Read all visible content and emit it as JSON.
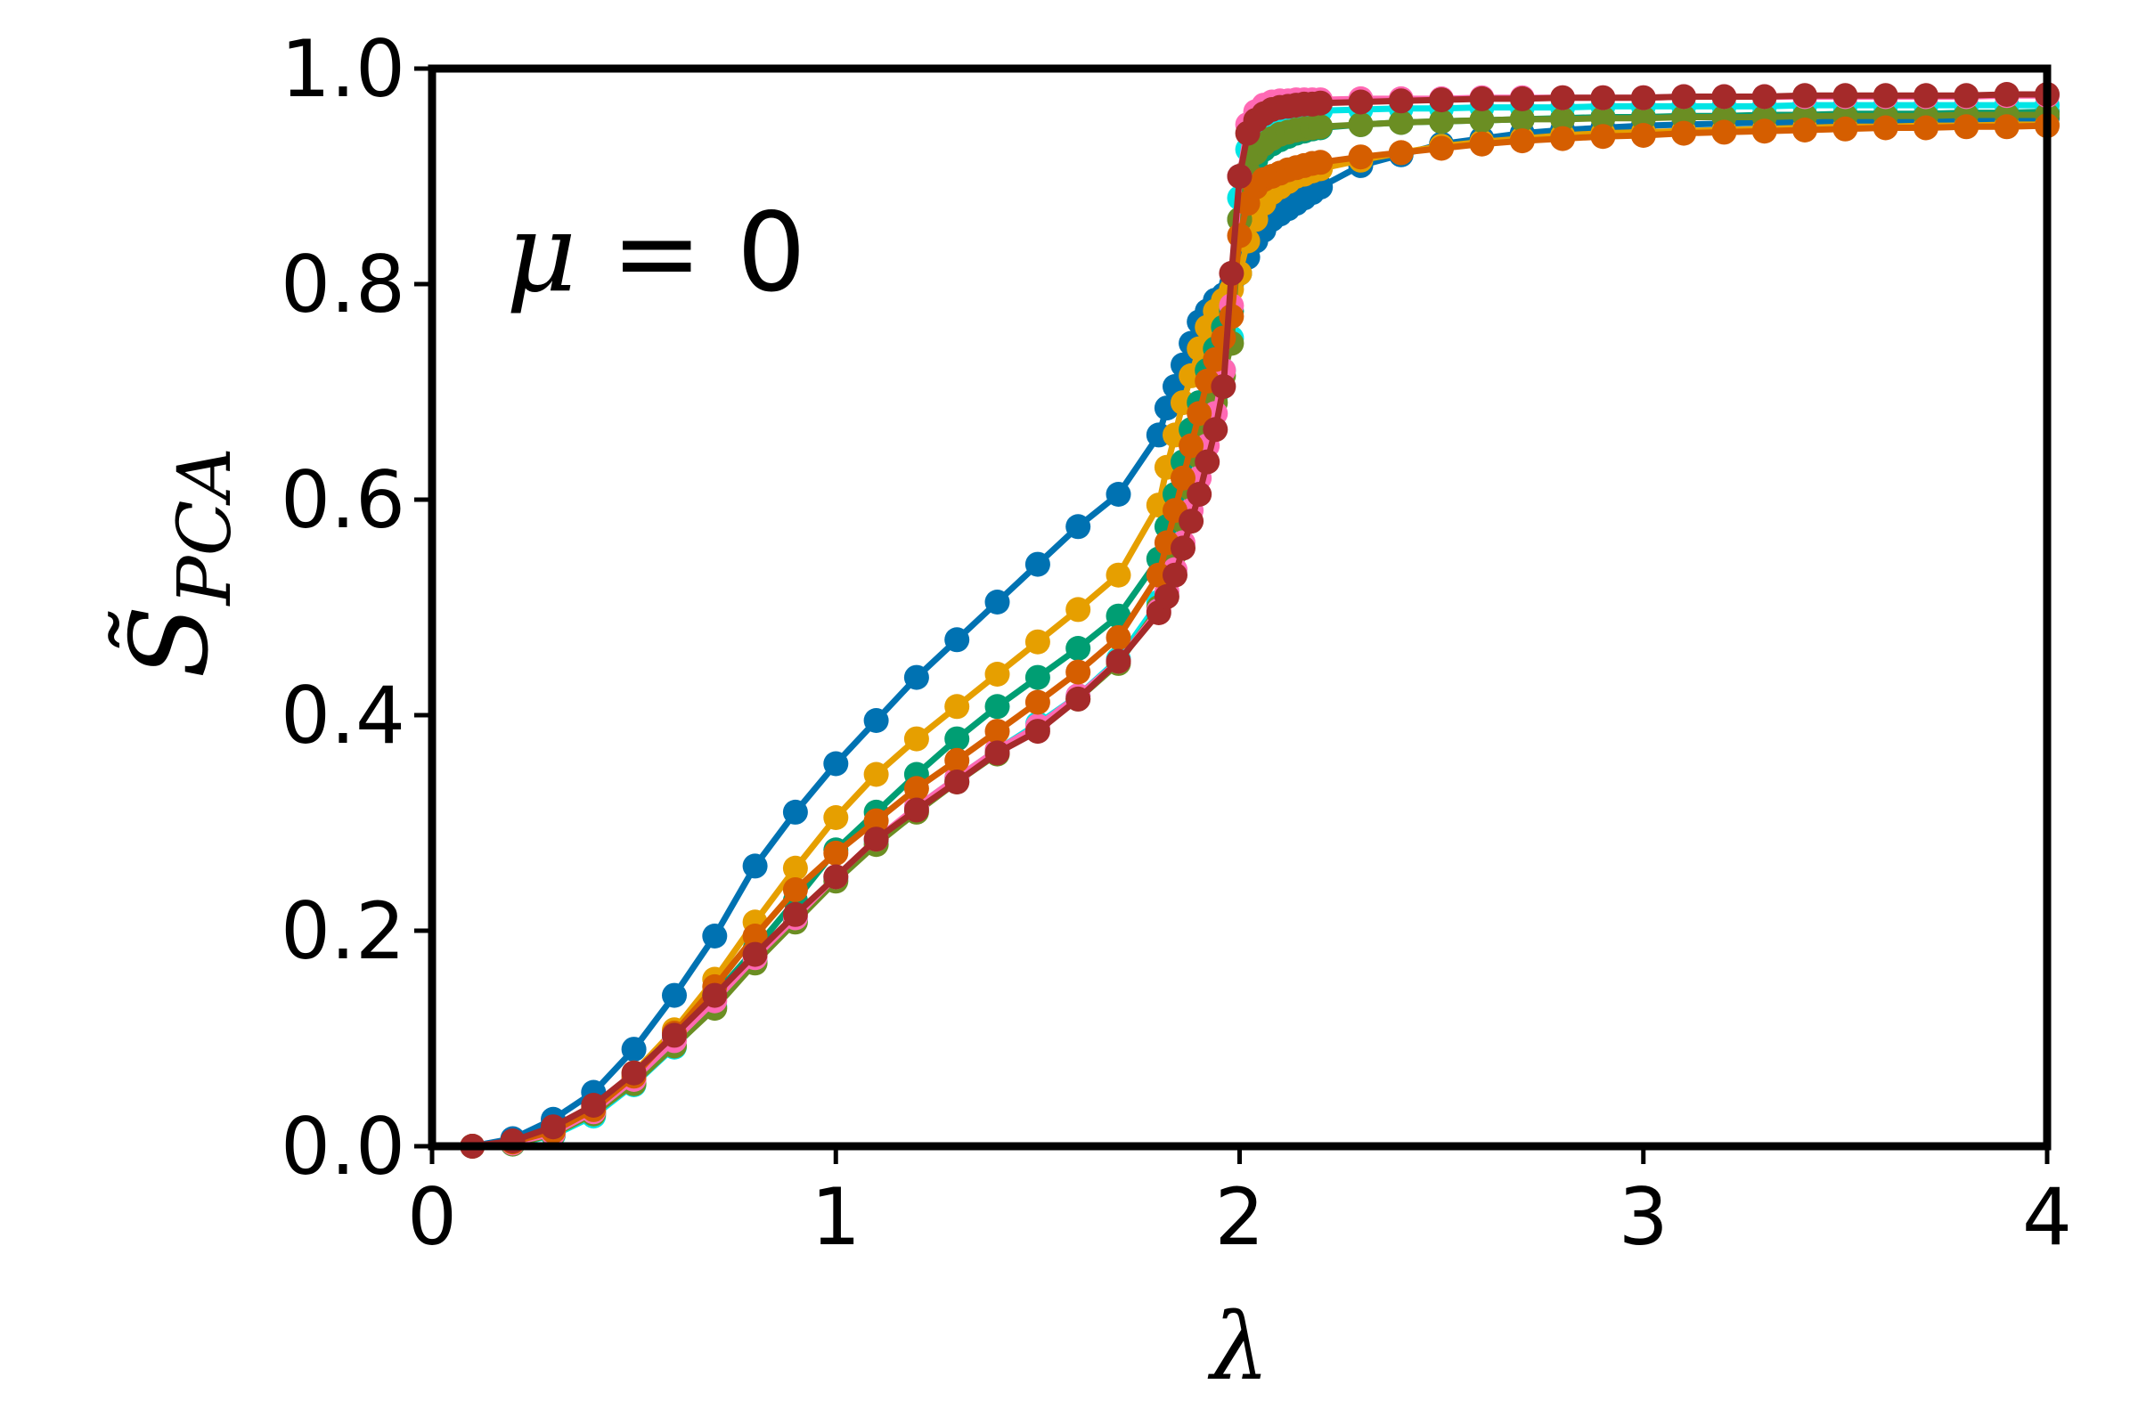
{
  "chart_data": {
    "type": "line",
    "title": "",
    "xlabel": "λ",
    "ylabel": "S̃_PCA",
    "ylabel_main": "S̃",
    "ylabel_sub": "PCA",
    "annotation_var": "μ",
    "annotation_rest": " = 0",
    "xlim": [
      0,
      4
    ],
    "ylim": [
      0,
      1
    ],
    "xticks": [
      0,
      1,
      2,
      3,
      4
    ],
    "xtick_labels": [
      "0",
      "1",
      "2",
      "3",
      "4"
    ],
    "yticks": [
      0,
      0.2,
      0.4,
      0.6,
      0.8,
      1.0
    ],
    "ytick_labels": [
      "0.0",
      "0.2",
      "0.4",
      "0.6",
      "0.8",
      "1.0"
    ],
    "grid": false,
    "legend": "none",
    "series": [
      {
        "color": "#0072B2",
        "x": [
          0.1,
          0.2,
          0.3,
          0.4,
          0.5,
          0.6,
          0.7,
          0.8,
          0.9,
          1.0,
          1.1,
          1.2,
          1.3,
          1.4,
          1.5,
          1.6,
          1.7,
          1.8,
          1.82,
          1.84,
          1.86,
          1.88,
          1.9,
          1.92,
          1.94,
          1.96,
          1.98,
          2.0,
          2.02,
          2.04,
          2.06,
          2.08,
          2.1,
          2.12,
          2.14,
          2.16,
          2.18,
          2.2,
          2.3,
          2.4,
          2.5,
          2.6,
          2.7,
          2.8,
          2.9,
          3.0,
          3.1,
          3.2,
          3.3,
          3.4,
          3.5,
          3.6,
          3.7,
          3.8,
          3.9,
          4.0
        ],
        "y": [
          0.0,
          0.007,
          0.025,
          0.05,
          0.09,
          0.14,
          0.195,
          0.26,
          0.31,
          0.355,
          0.395,
          0.435,
          0.47,
          0.505,
          0.54,
          0.575,
          0.605,
          0.66,
          0.685,
          0.705,
          0.725,
          0.745,
          0.765,
          0.775,
          0.785,
          0.79,
          0.8,
          0.81,
          0.825,
          0.84,
          0.85,
          0.86,
          0.865,
          0.87,
          0.875,
          0.88,
          0.885,
          0.89,
          0.91,
          0.92,
          0.93,
          0.935,
          0.94,
          0.943,
          0.945,
          0.947,
          0.948,
          0.949,
          0.95,
          0.95,
          0.951,
          0.952,
          0.952,
          0.953,
          0.953,
          0.954
        ]
      },
      {
        "color": "#E69F00",
        "x": [
          0.1,
          0.2,
          0.3,
          0.4,
          0.5,
          0.6,
          0.7,
          0.8,
          0.9,
          1.0,
          1.1,
          1.2,
          1.3,
          1.4,
          1.5,
          1.6,
          1.7,
          1.8,
          1.82,
          1.84,
          1.86,
          1.88,
          1.9,
          1.92,
          1.94,
          1.96,
          1.98,
          2.0,
          2.02,
          2.04,
          2.06,
          2.08,
          2.1,
          2.12,
          2.14,
          2.16,
          2.18,
          2.2,
          2.3,
          2.4,
          2.5,
          2.6,
          2.7,
          2.8,
          2.9,
          3.0,
          3.1,
          3.2,
          3.3,
          3.4,
          3.5,
          3.6,
          3.7,
          3.8,
          3.9,
          4.0
        ],
        "y": [
          0.0,
          0.004,
          0.016,
          0.036,
          0.068,
          0.108,
          0.155,
          0.208,
          0.258,
          0.305,
          0.345,
          0.378,
          0.408,
          0.438,
          0.468,
          0.498,
          0.53,
          0.595,
          0.63,
          0.66,
          0.69,
          0.715,
          0.74,
          0.76,
          0.775,
          0.785,
          0.795,
          0.81,
          0.84,
          0.86,
          0.875,
          0.885,
          0.89,
          0.895,
          0.9,
          0.902,
          0.905,
          0.907,
          0.915,
          0.922,
          0.928,
          0.932,
          0.935,
          0.938,
          0.94,
          0.941,
          0.942,
          0.943,
          0.944,
          0.945,
          0.946,
          0.946,
          0.947,
          0.947,
          0.948,
          0.948
        ]
      },
      {
        "color": "#009E73",
        "x": [
          0.1,
          0.2,
          0.3,
          0.4,
          0.5,
          0.6,
          0.7,
          0.8,
          0.9,
          1.0,
          1.1,
          1.2,
          1.3,
          1.4,
          1.5,
          1.6,
          1.7,
          1.8,
          1.82,
          1.84,
          1.86,
          1.88,
          1.9,
          1.92,
          1.94,
          1.96,
          1.98,
          2.0,
          2.02,
          2.04,
          2.06,
          2.08,
          2.1,
          2.12,
          2.14,
          2.16,
          2.18,
          2.2,
          2.3,
          2.4,
          2.5,
          2.6,
          2.7,
          2.8,
          2.9,
          3.0,
          3.1,
          3.2,
          3.3,
          3.4,
          3.5,
          3.6,
          3.7,
          3.8,
          3.9,
          4.0
        ],
        "y": [
          0.0,
          0.003,
          0.013,
          0.032,
          0.062,
          0.1,
          0.14,
          0.183,
          0.228,
          0.275,
          0.31,
          0.345,
          0.378,
          0.408,
          0.435,
          0.462,
          0.492,
          0.545,
          0.575,
          0.605,
          0.635,
          0.665,
          0.69,
          0.72,
          0.74,
          0.76,
          0.775,
          0.86,
          0.9,
          0.915,
          0.925,
          0.93,
          0.934,
          0.937,
          0.94,
          0.942,
          0.944,
          0.945,
          0.948,
          0.95,
          0.951,
          0.952,
          0.953,
          0.954,
          0.955,
          0.955,
          0.956,
          0.956,
          0.957,
          0.957,
          0.958,
          0.958,
          0.958,
          0.959,
          0.959,
          0.96
        ]
      },
      {
        "color": "#00E5E5",
        "x": [
          0.1,
          0.2,
          0.3,
          0.4,
          0.5,
          0.6,
          0.7,
          0.8,
          0.9,
          1.0,
          1.1,
          1.2,
          1.3,
          1.4,
          1.5,
          1.6,
          1.7,
          1.8,
          1.82,
          1.84,
          1.86,
          1.88,
          1.9,
          1.92,
          1.94,
          1.96,
          1.98,
          2.0,
          2.02,
          2.04,
          2.06,
          2.08,
          2.1,
          2.12,
          2.14,
          2.16,
          2.18,
          2.2,
          2.3,
          2.4,
          2.5,
          2.6,
          2.7,
          2.8,
          2.9,
          3.0,
          3.1,
          3.2,
          3.3,
          3.4,
          3.5,
          3.6,
          3.7,
          3.8,
          3.9,
          4.0
        ],
        "y": [
          0.0,
          0.002,
          0.01,
          0.028,
          0.057,
          0.092,
          0.13,
          0.172,
          0.21,
          0.248,
          0.283,
          0.315,
          0.342,
          0.368,
          0.392,
          0.418,
          0.452,
          0.505,
          0.53,
          0.555,
          0.585,
          0.615,
          0.645,
          0.67,
          0.695,
          0.72,
          0.75,
          0.88,
          0.925,
          0.94,
          0.948,
          0.953,
          0.956,
          0.958,
          0.959,
          0.96,
          0.96,
          0.961,
          0.962,
          0.963,
          0.963,
          0.964,
          0.964,
          0.964,
          0.965,
          0.965,
          0.965,
          0.965,
          0.965,
          0.966,
          0.966,
          0.966,
          0.966,
          0.966,
          0.966,
          0.966
        ]
      },
      {
        "color": "#6B8E23",
        "x": [
          0.1,
          0.2,
          0.3,
          0.4,
          0.5,
          0.6,
          0.7,
          0.8,
          0.9,
          1.0,
          1.1,
          1.2,
          1.3,
          1.4,
          1.5,
          1.6,
          1.7,
          1.8,
          1.82,
          1.84,
          1.86,
          1.88,
          1.9,
          1.92,
          1.94,
          1.96,
          1.98,
          2.0,
          2.02,
          2.04,
          2.06,
          2.08,
          2.1,
          2.12,
          2.14,
          2.16,
          2.18,
          2.2,
          2.3,
          2.4,
          2.5,
          2.6,
          2.7,
          2.8,
          2.9,
          3.0,
          3.1,
          3.2,
          3.3,
          3.4,
          3.5,
          3.6,
          3.7,
          3.8,
          3.9,
          4.0
        ],
        "y": [
          0.0,
          0.002,
          0.011,
          0.03,
          0.058,
          0.093,
          0.128,
          0.17,
          0.208,
          0.246,
          0.28,
          0.31,
          0.338,
          0.364,
          0.388,
          0.415,
          0.448,
          0.5,
          0.525,
          0.55,
          0.58,
          0.61,
          0.64,
          0.665,
          0.69,
          0.715,
          0.745,
          0.86,
          0.905,
          0.922,
          0.93,
          0.935,
          0.939,
          0.941,
          0.943,
          0.944,
          0.945,
          0.946,
          0.948,
          0.95,
          0.951,
          0.952,
          0.953,
          0.953,
          0.954,
          0.954,
          0.955,
          0.955,
          0.955,
          0.956,
          0.956,
          0.956,
          0.956,
          0.957,
          0.957,
          0.957
        ]
      },
      {
        "color": "#FF69B4",
        "x": [
          0.1,
          0.2,
          0.3,
          0.4,
          0.5,
          0.6,
          0.7,
          0.8,
          0.9,
          1.0,
          1.1,
          1.2,
          1.3,
          1.4,
          1.5,
          1.6,
          1.7,
          1.8,
          1.82,
          1.84,
          1.86,
          1.88,
          1.9,
          1.92,
          1.94,
          1.96,
          1.98,
          2.0,
          2.02,
          2.04,
          2.06,
          2.08,
          2.1,
          2.12,
          2.14,
          2.16,
          2.18,
          2.2,
          2.3,
          2.4,
          2.5,
          2.6,
          2.7,
          2.8,
          2.9,
          3.0,
          3.1,
          3.2,
          3.3,
          3.4,
          3.5,
          3.6,
          3.7,
          3.8,
          3.9,
          4.0
        ],
        "y": [
          0.0,
          0.003,
          0.012,
          0.032,
          0.062,
          0.098,
          0.135,
          0.175,
          0.212,
          0.25,
          0.285,
          0.315,
          0.342,
          0.368,
          0.39,
          0.418,
          0.45,
          0.497,
          0.515,
          0.535,
          0.56,
          0.59,
          0.62,
          0.65,
          0.68,
          0.72,
          0.78,
          0.9,
          0.948,
          0.96,
          0.966,
          0.969,
          0.97,
          0.97,
          0.971,
          0.971,
          0.971,
          0.971,
          0.972,
          0.972,
          0.972,
          0.973,
          0.973,
          0.973,
          0.973,
          0.973,
          0.974,
          0.974,
          0.974,
          0.974,
          0.974,
          0.974,
          0.974,
          0.974,
          0.975,
          0.975
        ]
      },
      {
        "color": "#D55E00",
        "x": [
          0.1,
          0.2,
          0.3,
          0.4,
          0.5,
          0.6,
          0.7,
          0.8,
          0.9,
          1.0,
          1.1,
          1.2,
          1.3,
          1.4,
          1.5,
          1.6,
          1.7,
          1.8,
          1.82,
          1.84,
          1.86,
          1.88,
          1.9,
          1.92,
          1.94,
          1.96,
          1.98,
          2.0,
          2.02,
          2.04,
          2.06,
          2.08,
          2.1,
          2.12,
          2.14,
          2.16,
          2.18,
          2.2,
          2.3,
          2.4,
          2.5,
          2.6,
          2.7,
          2.8,
          2.9,
          3.0,
          3.1,
          3.2,
          3.3,
          3.4,
          3.5,
          3.6,
          3.7,
          3.8,
          3.9,
          4.0
        ],
        "y": [
          0.0,
          0.004,
          0.014,
          0.034,
          0.065,
          0.105,
          0.148,
          0.195,
          0.238,
          0.272,
          0.302,
          0.332,
          0.358,
          0.385,
          0.412,
          0.44,
          0.472,
          0.53,
          0.56,
          0.59,
          0.62,
          0.65,
          0.68,
          0.71,
          0.73,
          0.75,
          0.77,
          0.845,
          0.875,
          0.89,
          0.897,
          0.9,
          0.903,
          0.906,
          0.908,
          0.91,
          0.912,
          0.913,
          0.918,
          0.922,
          0.926,
          0.93,
          0.933,
          0.935,
          0.937,
          0.938,
          0.94,
          0.941,
          0.942,
          0.943,
          0.944,
          0.945,
          0.945,
          0.946,
          0.946,
          0.947
        ]
      },
      {
        "color": "#A52A2A",
        "x": [
          0.1,
          0.2,
          0.3,
          0.4,
          0.5,
          0.6,
          0.7,
          0.8,
          0.9,
          1.0,
          1.1,
          1.2,
          1.3,
          1.4,
          1.5,
          1.6,
          1.7,
          1.8,
          1.82,
          1.84,
          1.86,
          1.88,
          1.9,
          1.92,
          1.94,
          1.96,
          1.98,
          2.0,
          2.02,
          2.04,
          2.06,
          2.08,
          2.1,
          2.12,
          2.14,
          2.16,
          2.18,
          2.2,
          2.3,
          2.4,
          2.5,
          2.6,
          2.7,
          2.8,
          2.9,
          3.0,
          3.1,
          3.2,
          3.3,
          3.4,
          3.5,
          3.6,
          3.7,
          3.8,
          3.9,
          4.0
        ],
        "y": [
          0.0,
          0.005,
          0.018,
          0.038,
          0.068,
          0.103,
          0.14,
          0.178,
          0.215,
          0.25,
          0.285,
          0.312,
          0.338,
          0.365,
          0.385,
          0.415,
          0.45,
          0.495,
          0.51,
          0.53,
          0.555,
          0.58,
          0.605,
          0.635,
          0.665,
          0.705,
          0.81,
          0.9,
          0.94,
          0.952,
          0.958,
          0.962,
          0.964,
          0.965,
          0.966,
          0.967,
          0.967,
          0.968,
          0.969,
          0.97,
          0.971,
          0.972,
          0.972,
          0.973,
          0.973,
          0.973,
          0.974,
          0.974,
          0.974,
          0.975,
          0.975,
          0.975,
          0.975,
          0.975,
          0.976,
          0.976
        ]
      }
    ]
  }
}
